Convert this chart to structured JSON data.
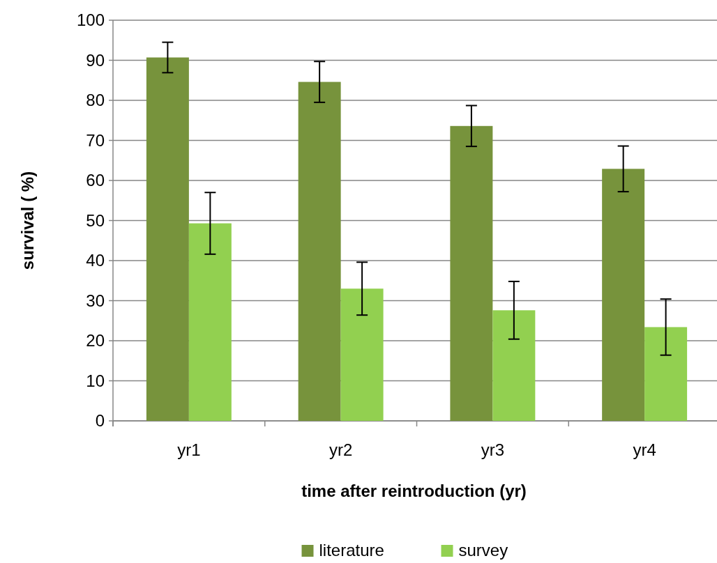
{
  "chart_data": {
    "type": "bar",
    "xlabel": "time after reintroduction (yr)",
    "ylabel": "survival ( %)",
    "categories": [
      "yr1",
      "yr2",
      "yr3",
      "yr4"
    ],
    "series": [
      {
        "name": "literature",
        "color": "#77933c",
        "values": [
          90.7,
          84.6,
          73.6,
          62.9
        ],
        "errors": [
          3.8,
          5.1,
          5.1,
          5.7
        ]
      },
      {
        "name": "survey",
        "color": "#92d050",
        "values": [
          49.3,
          33.0,
          27.6,
          23.4
        ],
        "errors": [
          7.7,
          6.6,
          7.2,
          7.0
        ]
      }
    ],
    "ylim": [
      0,
      100
    ],
    "yticks": [
      0,
      10,
      20,
      30,
      40,
      50,
      60,
      70,
      80,
      90,
      100
    ],
    "grid": "y",
    "legend": "bottom"
  }
}
